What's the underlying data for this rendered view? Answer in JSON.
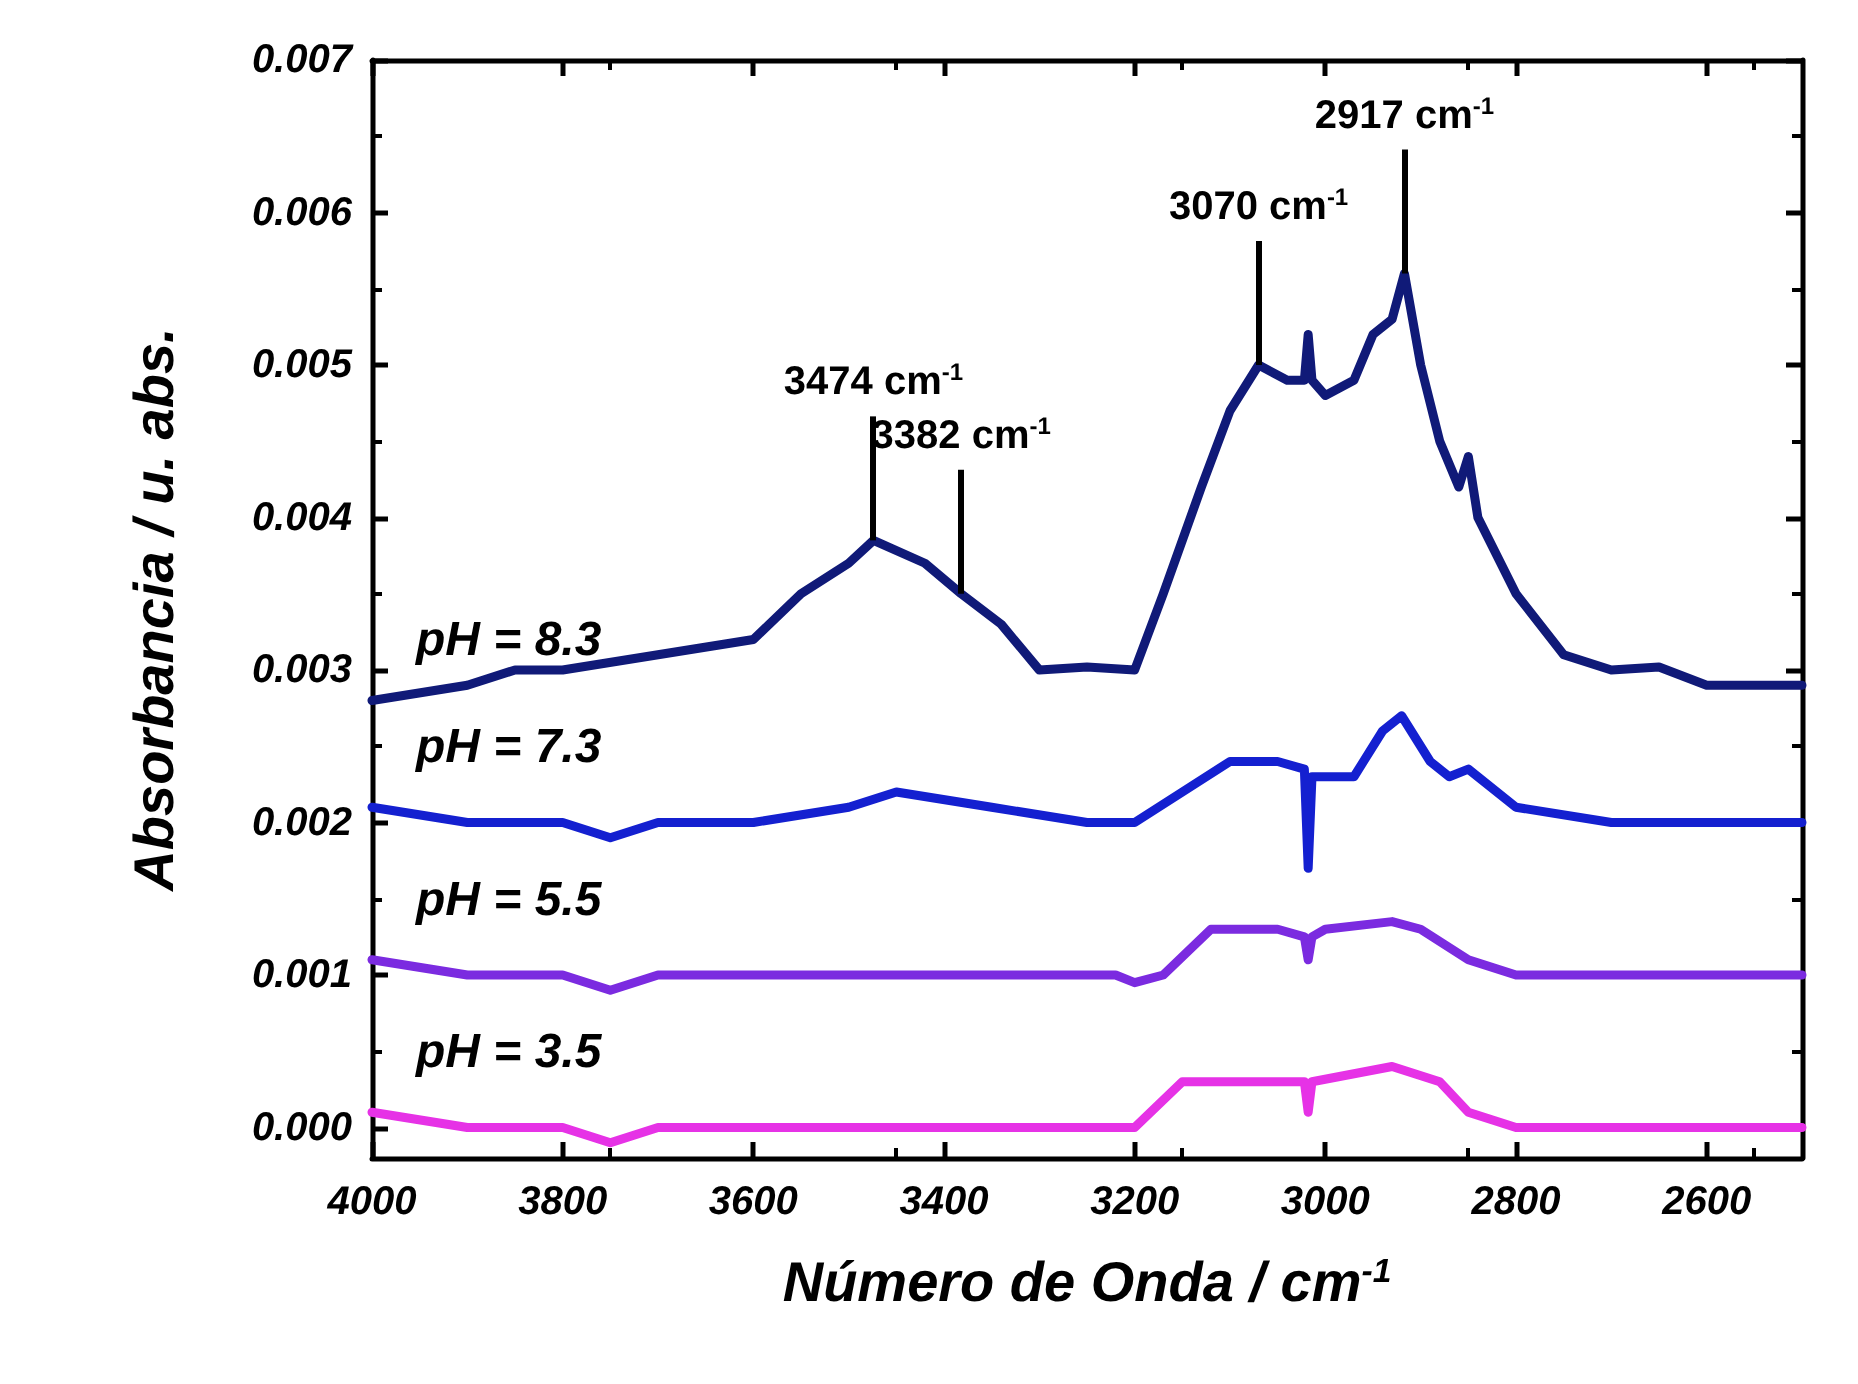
{
  "chart_data": {
    "type": "line",
    "xlabel": "Número de Onda / cm$^{-1}$",
    "ylabel": "Absorbancia / u. abs.",
    "xlim": [
      4000,
      2500
    ],
    "xticks": [
      4000,
      3800,
      3600,
      3400,
      3200,
      3000,
      2800,
      2600
    ],
    "ylim": [
      -0.0002,
      0.007
    ],
    "yticks": [
      {
        "value": 0,
        "label": "0.000"
      },
      {
        "value": 0.001,
        "label": "0.001"
      },
      {
        "value": 0.002,
        "label": "0.002"
      },
      {
        "value": 0.003,
        "label": "0.003"
      },
      {
        "value": 0.004,
        "label": "0.004"
      },
      {
        "value": 0.005,
        "label": "0.005"
      },
      {
        "value": 0.006,
        "label": "0.006"
      },
      {
        "value": 0.007,
        "label": "0.007"
      }
    ],
    "grid": false,
    "legend": false,
    "marker": "none",
    "line_style": "solid",
    "annotations": [
      {
        "text": "3474 cm$^{-1}$",
        "x": 3474,
        "y": 0.00385
      },
      {
        "text": "3382 cm$^{-1}$",
        "x": 3382,
        "y": 0.0035
      },
      {
        "text": "3070 cm$^{-1}$",
        "x": 3070,
        "y": 0.005
      },
      {
        "text": "2917 cm$^{-1}$",
        "x": 2917,
        "y": 0.0056
      }
    ],
    "series": [
      {
        "name": "pH = 8.3",
        "color": "#101a78",
        "x": [
          4000,
          3900,
          3850,
          3800,
          3700,
          3600,
          3550,
          3500,
          3474,
          3420,
          3382,
          3340,
          3300,
          3250,
          3200,
          3170,
          3130,
          3100,
          3070,
          3040,
          3022,
          3018,
          3014,
          3000,
          2970,
          2950,
          2930,
          2917,
          2900,
          2880,
          2860,
          2850,
          2840,
          2800,
          2750,
          2700,
          2650,
          2600,
          2500
        ],
        "values": [
          0.0028,
          0.0029,
          0.003,
          0.003,
          0.0031,
          0.0032,
          0.0035,
          0.0037,
          0.00385,
          0.0037,
          0.0035,
          0.0033,
          0.003,
          0.00302,
          0.003,
          0.0035,
          0.0042,
          0.0047,
          0.005,
          0.0049,
          0.0049,
          0.0052,
          0.0049,
          0.0048,
          0.0049,
          0.0052,
          0.0053,
          0.0056,
          0.005,
          0.0045,
          0.0042,
          0.0044,
          0.004,
          0.0035,
          0.0031,
          0.003,
          0.00302,
          0.0029,
          0.0029
        ]
      },
      {
        "name": "pH = 7.3",
        "color": "#1420d0",
        "x": [
          4000,
          3900,
          3800,
          3750,
          3700,
          3600,
          3500,
          3450,
          3350,
          3250,
          3200,
          3150,
          3100,
          3050,
          3022,
          3018,
          3014,
          2970,
          2940,
          2920,
          2890,
          2870,
          2850,
          2800,
          2700,
          2600,
          2500
        ],
        "values": [
          0.0021,
          0.002,
          0.002,
          0.0019,
          0.002,
          0.002,
          0.0021,
          0.0022,
          0.0021,
          0.002,
          0.002,
          0.0022,
          0.0024,
          0.0024,
          0.00235,
          0.0017,
          0.0023,
          0.0023,
          0.0026,
          0.0027,
          0.0024,
          0.0023,
          0.00235,
          0.0021,
          0.002,
          0.002,
          0.002
        ]
      },
      {
        "name": "pH = 5.5",
        "color": "#7b2be0",
        "x": [
          4000,
          3900,
          3800,
          3750,
          3700,
          3500,
          3300,
          3220,
          3200,
          3170,
          3120,
          3050,
          3022,
          3018,
          3014,
          3000,
          2930,
          2900,
          2850,
          2800,
          2700,
          2500
        ],
        "values": [
          0.0011,
          0.001,
          0.001,
          0.0009,
          0.001,
          0.001,
          0.001,
          0.001,
          0.00095,
          0.001,
          0.0013,
          0.0013,
          0.00125,
          0.0011,
          0.00125,
          0.0013,
          0.00135,
          0.0013,
          0.0011,
          0.001,
          0.001,
          0.001
        ]
      },
      {
        "name": "pH = 3.5",
        "color": "#e632e6",
        "x": [
          4000,
          3900,
          3800,
          3750,
          3700,
          3500,
          3300,
          3200,
          3150,
          3100,
          3050,
          3022,
          3018,
          3014,
          2930,
          2880,
          2850,
          2800,
          2700,
          2600,
          2500
        ],
        "values": [
          0.0001,
          0.0,
          0.0,
          -0.0001,
          0.0,
          0.0,
          0.0,
          0.0,
          0.0003,
          0.0003,
          0.0003,
          0.0003,
          0.0001,
          0.0003,
          0.0004,
          0.0003,
          0.0001,
          0.0,
          0.0,
          0.0,
          0.0
        ]
      }
    ]
  }
}
